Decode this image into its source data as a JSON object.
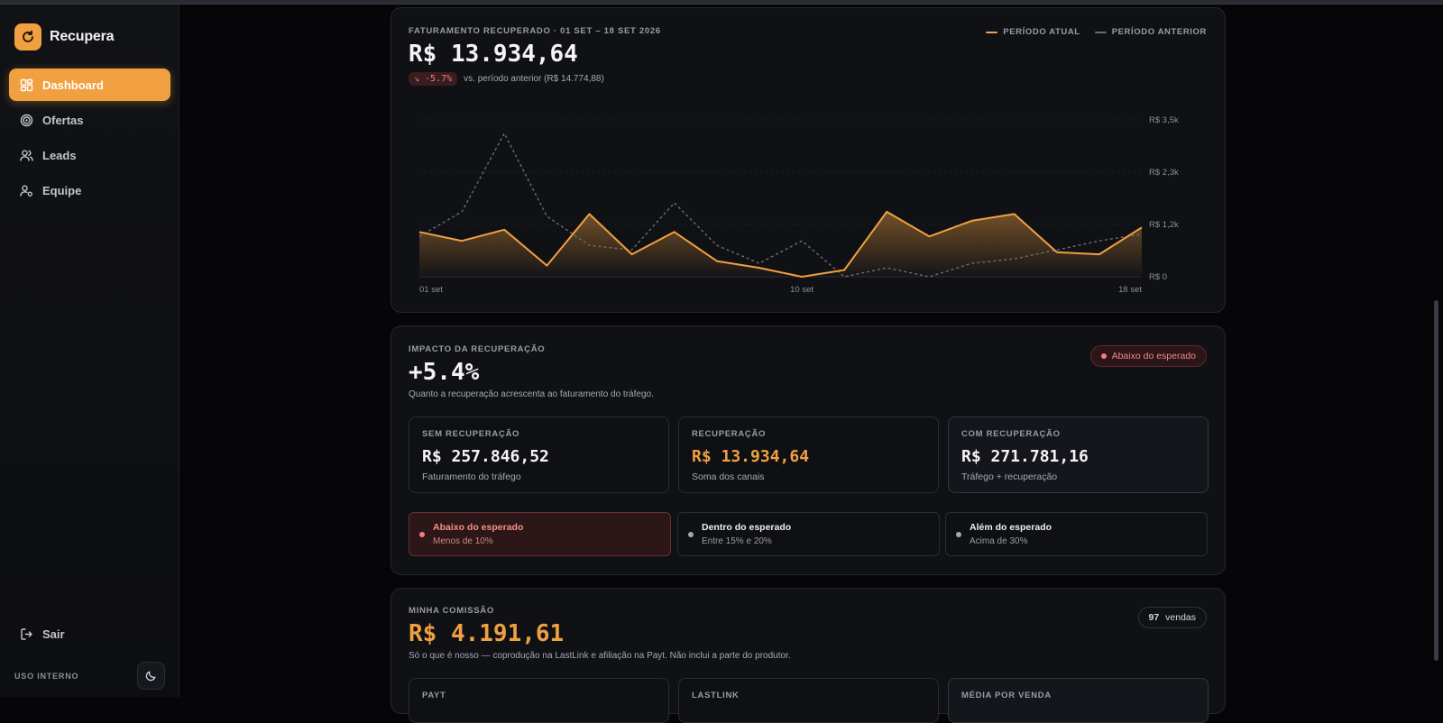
{
  "sidebar": {
    "brand": "Recupera",
    "items": [
      {
        "label": "Dashboard",
        "icon": "grid-icon",
        "active": true
      },
      {
        "label": "Ofertas",
        "icon": "target-icon",
        "active": false
      },
      {
        "label": "Leads",
        "icon": "users-icon",
        "active": false
      },
      {
        "label": "Equipe",
        "icon": "user-cog-icon",
        "active": false
      }
    ],
    "logout_label": "Sair",
    "footer_label": "USO INTERNO"
  },
  "revenue": {
    "label": "FATURAMENTO RECUPERADO · 01 SET – 18 SET 2026",
    "value": "R$ 13.934,64",
    "delta": "↘ -5.7%",
    "comparison": "vs. período anterior (R$ 14.774,88)",
    "legend_current": "PERÍODO ATUAL",
    "legend_previous": "PERÍODO ANTERIOR"
  },
  "chart_data": {
    "type": "area",
    "x": [
      "01 set",
      "02 set",
      "03 set",
      "04 set",
      "05 set",
      "06 set",
      "07 set",
      "08 set",
      "09 set",
      "10 set",
      "11 set",
      "12 set",
      "13 set",
      "14 set",
      "15 set",
      "16 set",
      "17 set",
      "18 set"
    ],
    "series": [
      {
        "name": "PERÍODO ATUAL",
        "values": [
          1000,
          800,
          1050,
          250,
          1400,
          500,
          1000,
          350,
          200,
          0,
          150,
          1450,
          900,
          1250,
          1400,
          550,
          500,
          1100
        ]
      },
      {
        "name": "PERÍODO ANTERIOR",
        "values": [
          900,
          1450,
          3200,
          1350,
          700,
          600,
          1650,
          700,
          300,
          800,
          0,
          200,
          0,
          300,
          400,
          600,
          800,
          950
        ]
      }
    ],
    "y_ticks": [
      "R$ 0",
      "R$ 1,2k",
      "R$ 2,3k",
      "R$ 3,5k"
    ],
    "x_tick_labels": [
      "01 set",
      "10 set",
      "18 set"
    ],
    "ylim": [
      0,
      3500
    ],
    "colors": {
      "current": "#f0a041",
      "previous": "#6b6d76"
    },
    "grid": true,
    "legend": "top-right"
  },
  "impact": {
    "label": "IMPACTO DA RECUPERAÇÃO",
    "value": "+5.4%",
    "description": "Quanto a recuperação acrescenta ao faturamento do tráfego.",
    "status": "Abaixo do esperado",
    "stats": [
      {
        "label": "SEM RECUPERAÇÃO",
        "value": "R$ 257.846,52",
        "sub": "Faturamento do tráfego"
      },
      {
        "label": "RECUPERAÇÃO",
        "value": "R$ 13.934,64",
        "sub": "Soma dos canais"
      },
      {
        "label": "COM RECUPERAÇÃO",
        "value": "R$ 271.781,16",
        "sub": "Tráfego + recuperação"
      }
    ],
    "ranges": [
      {
        "title": "Abaixo do esperado",
        "sub": "Menos de 10%"
      },
      {
        "title": "Dentro do esperado",
        "sub": "Entre 15% e 20%"
      },
      {
        "title": "Além do esperado",
        "sub": "Acima de 30%"
      }
    ]
  },
  "commission": {
    "label": "MINHA COMISSÃO",
    "value": "R$ 4.191,61",
    "description": "Só o que é nosso — coprodução na LastLink e afiliação na Payt. Não inclui a parte do produtor.",
    "sales_count": "97",
    "sales_label": "vendas",
    "boxes": [
      "PAYT",
      "LASTLINK",
      "MÉDIA POR VENDA"
    ]
  }
}
